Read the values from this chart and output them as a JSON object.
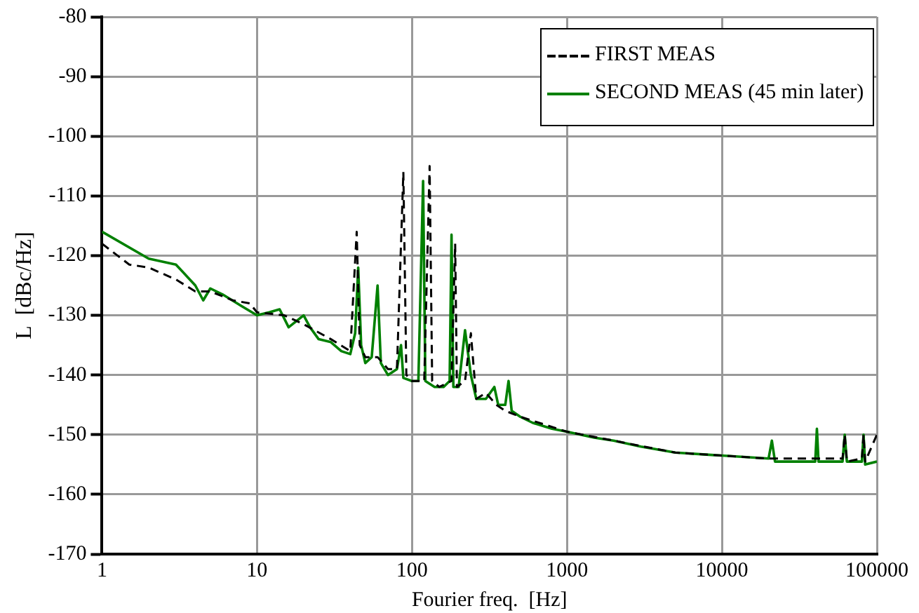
{
  "chart_data": {
    "type": "line",
    "xlabel": "Fourier freq.  [Hz]",
    "ylabel": "L  [dBc/Hz]",
    "log": "x",
    "grid": true,
    "legend": "top right",
    "marker": "none",
    "xlim": [
      1,
      100000
    ],
    "xticks": [
      1,
      10,
      100,
      1000,
      10000,
      100000
    ],
    "ylim": [
      -170,
      -80
    ],
    "yticks": [
      -170,
      -160,
      -150,
      -140,
      -130,
      -120,
      -110,
      -100,
      -90,
      -80
    ],
    "series": [
      {
        "name": "FIRST MEAS",
        "color": "#000000",
        "line_style": "dashed",
        "x": [
          1,
          1.5,
          2,
          3,
          4,
          5,
          7,
          9,
          10,
          15,
          20,
          30,
          40,
          44,
          46,
          50,
          60,
          70,
          80,
          88,
          92,
          100,
          120,
          130,
          135,
          150,
          180,
          190,
          195,
          220,
          240,
          260,
          300,
          350,
          400,
          500,
          1000,
          2000,
          5000,
          10000,
          20000,
          40000,
          60000,
          62000,
          64000,
          80000,
          82000,
          84000,
          100000
        ],
        "values": [
          -118,
          -121.5,
          -122,
          -124,
          -126,
          -126,
          -127.5,
          -128,
          -129.5,
          -130,
          -131.5,
          -134,
          -136,
          -116,
          -135,
          -137,
          -137,
          -139,
          -139,
          -106,
          -140,
          -141,
          -141,
          -105,
          -141,
          -142,
          -141,
          -118,
          -142,
          -141,
          -133,
          -144,
          -143,
          -145,
          -146,
          -147,
          -149.5,
          -151,
          -153,
          -153.5,
          -154,
          -154,
          -154,
          -150,
          -154.5,
          -154,
          -150,
          -154.5,
          -150
        ]
      },
      {
        "name": "SECOND MEAS (45 min later)",
        "color": "#008000",
        "line_style": "solid",
        "x": [
          1,
          2,
          3,
          4,
          4.5,
          5,
          6,
          8,
          10,
          12,
          14,
          16,
          20,
          22,
          25,
          30,
          35,
          40,
          43,
          45,
          47,
          50,
          55,
          60,
          63,
          70,
          80,
          85,
          88,
          100,
          110,
          118,
          122,
          140,
          160,
          175,
          180,
          185,
          200,
          220,
          240,
          260,
          300,
          340,
          360,
          400,
          420,
          440,
          500,
          600,
          800,
          1000,
          1500,
          2000,
          3000,
          5000,
          10000,
          20000,
          21000,
          22000,
          40000,
          41000,
          42000,
          60000,
          62000,
          64000,
          80000,
          82000,
          84000,
          100000
        ],
        "values": [
          -116,
          -120.5,
          -121.5,
          -125,
          -127.5,
          -125.5,
          -126.5,
          -128.5,
          -130,
          -129.5,
          -129,
          -132,
          -130,
          -132,
          -134,
          -134.5,
          -136,
          -136.5,
          -133,
          -122,
          -135,
          -138,
          -137,
          -125,
          -138,
          -140,
          -139,
          -135,
          -140.5,
          -141,
          -141,
          -107.5,
          -141,
          -142,
          -142,
          -141,
          -116.5,
          -142,
          -142,
          -132.5,
          -140,
          -144,
          -144,
          -142,
          -145,
          -145,
          -141,
          -146,
          -147,
          -148,
          -149,
          -149.5,
          -150.5,
          -151,
          -152,
          -153,
          -153.5,
          -154,
          -151,
          -154.5,
          -154.5,
          -149,
          -154.5,
          -154.5,
          -150,
          -154.5,
          -154.5,
          -150,
          -155,
          -154.5
        ]
      }
    ]
  }
}
